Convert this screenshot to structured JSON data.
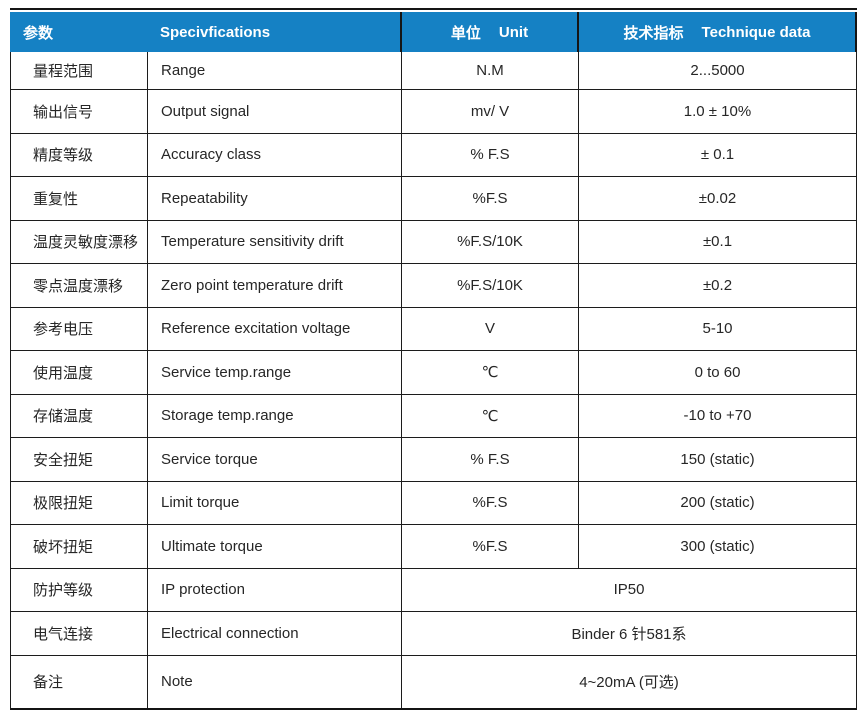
{
  "table": {
    "header": {
      "param_zh": "参数",
      "spec_en": "Specivfications",
      "unit_zh": "单位",
      "unit_en": "Unit",
      "tech_zh": "技术指标",
      "tech_en": "Technique data"
    },
    "rows": [
      {
        "param_zh": "量程范围",
        "param_en": "Range",
        "unit": "N.M",
        "value": "2...5000",
        "merged": false
      },
      {
        "param_zh": "输出信号",
        "param_en": "Output signal",
        "unit": "mv/ V",
        "value": "1.0 ± 10%",
        "merged": false
      },
      {
        "param_zh": "精度等级",
        "param_en": "Accuracy class",
        "unit": "% F.S",
        "value": "± 0.1",
        "merged": false
      },
      {
        "param_zh": "重复性",
        "param_en": "Repeatability",
        "unit": "%F.S",
        "value": "±0.02",
        "merged": false
      },
      {
        "param_zh": "温度灵敏度漂移",
        "param_en": "Temperature sensitivity drift",
        "unit": "%F.S/10K",
        "value": "±0.1",
        "merged": false
      },
      {
        "param_zh": "零点温度漂移",
        "param_en": "Zero point temperature drift",
        "unit": "%F.S/10K",
        "value": "±0.2",
        "merged": false
      },
      {
        "param_zh": "参考电压",
        "param_en": "Reference excitation voltage",
        "unit": "V",
        "value": "5-10",
        "merged": false
      },
      {
        "param_zh": "使用温度",
        "param_en": "Service temp.range",
        "unit": "℃",
        "value": "0 to 60",
        "merged": false
      },
      {
        "param_zh": "存储温度",
        "param_en": "Storage temp.range",
        "unit": "℃",
        "value": "-10 to +70",
        "merged": false
      },
      {
        "param_zh": "安全扭矩",
        "param_en": "Service torque",
        "unit": "% F.S",
        "value": "150 (static)",
        "merged": false
      },
      {
        "param_zh": "极限扭矩",
        "param_en": "Limit torque",
        "unit": "%F.S",
        "value": "200 (static)",
        "merged": false
      },
      {
        "param_zh": "破坏扭矩",
        "param_en": "Ultimate torque",
        "unit": "%F.S",
        "value": "300 (static)",
        "merged": false
      },
      {
        "param_zh": "防护等级",
        "param_en": "IP protection",
        "unit": "",
        "value": "IP50",
        "merged": true
      },
      {
        "param_zh": "电气连接",
        "param_en": "Electrical connection",
        "unit": "",
        "value": "Binder 6 针581系",
        "merged": true
      },
      {
        "param_zh": "备注",
        "param_en": "Note",
        "unit": "",
        "value": "4~20mA (可选)",
        "merged": true
      }
    ],
    "colors": {
      "header_bg": "#1581C4",
      "header_text": "#FFFFFF",
      "body_text": "#262626",
      "border": "#1C1C1C"
    }
  }
}
